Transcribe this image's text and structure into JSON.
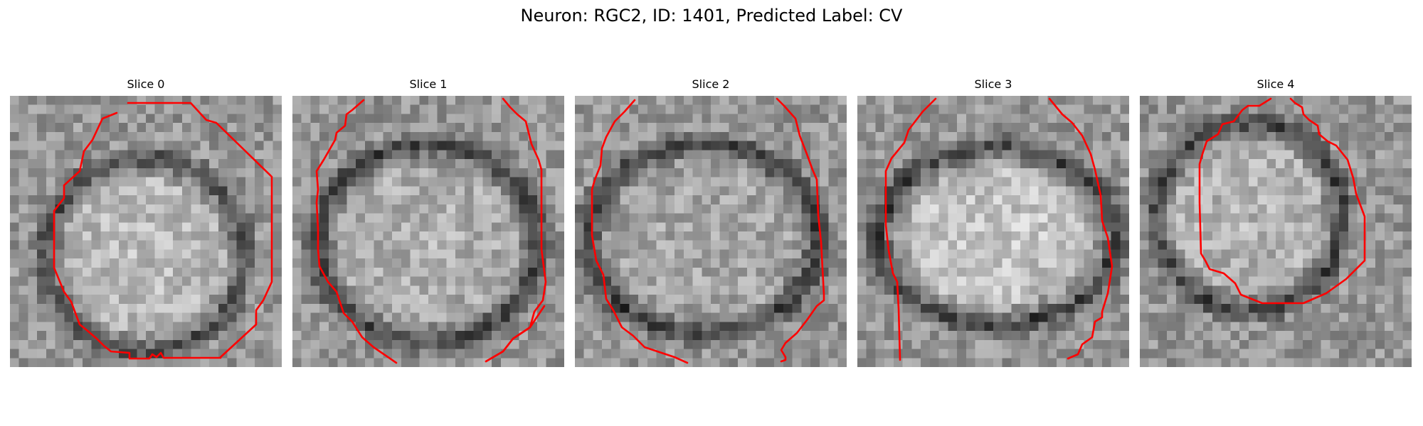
{
  "figure": {
    "title": "Neuron: RGC2, ID: 1401, Predicted Label: CV"
  },
  "colors": {
    "contour": "#ff0000",
    "background": "#ffffff",
    "image_colormap": "gray"
  },
  "slices": [
    {
      "title": "Slice 0"
    },
    {
      "title": "Slice 1"
    },
    {
      "title": "Slice 2"
    },
    {
      "title": "Slice 3"
    },
    {
      "title": "Slice 4"
    }
  ]
}
